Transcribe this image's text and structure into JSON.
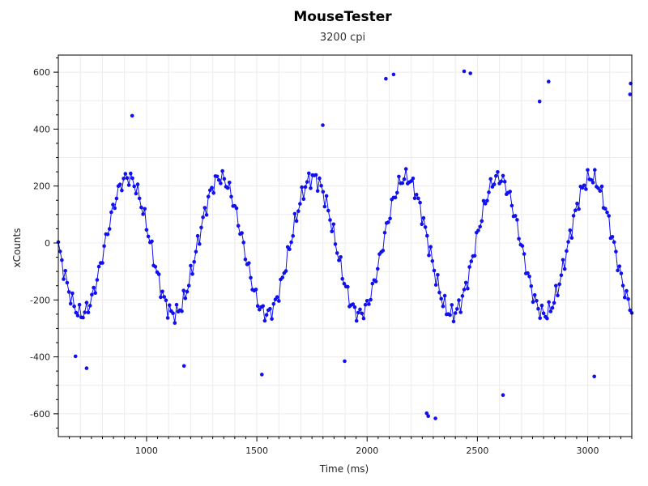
{
  "chart_data": {
    "type": "scatter",
    "title": "MouseTester",
    "subtitle": "3200 cpi",
    "xlabel": "Time (ms)",
    "ylabel": "xCounts",
    "xlim": [
      600,
      3200
    ],
    "ylim": [
      -680,
      660
    ],
    "xticks": [
      1000,
      1500,
      2000,
      2500,
      3000
    ],
    "yticks": [
      -600,
      -400,
      -200,
      0,
      200,
      400,
      600
    ],
    "grid": true,
    "colors": {
      "series": "#1010ee",
      "grid": "#ececec",
      "axis": "#000000"
    },
    "series": [
      {
        "mode": "markers+line",
        "model": {
          "center": -10,
          "amplitude": 240,
          "period": 420,
          "peak_time": 915
        },
        "x": [
          600,
          608,
          616,
          624,
          632,
          640,
          648,
          656,
          664,
          672,
          680,
          688,
          696,
          704,
          712,
          720,
          728,
          736,
          744,
          752,
          760,
          768,
          776,
          784,
          792,
          800,
          808,
          816,
          824,
          832,
          840,
          848,
          856,
          864,
          872,
          880,
          888,
          896,
          904,
          912,
          920,
          928,
          936,
          944,
          952,
          960,
          968,
          976,
          984,
          992,
          1000,
          1008,
          1016,
          1024,
          1032,
          1040,
          1048,
          1056,
          1064,
          1072,
          1080,
          1088,
          1096,
          1104,
          1112,
          1120,
          1128,
          1136,
          1144,
          1152,
          1160,
          1168,
          1176,
          1184,
          1192,
          1200,
          1208,
          1216,
          1224,
          1232,
          1240,
          1248,
          1256,
          1264,
          1272,
          1280,
          1288,
          1296,
          1304,
          1312,
          1320,
          1328,
          1336,
          1344,
          1352,
          1360,
          1368,
          1376,
          1384,
          1392,
          1400,
          1408,
          1416,
          1424,
          1432,
          1440,
          1448,
          1456,
          1464,
          1472,
          1480,
          1488,
          1496,
          1504,
          1512,
          1520,
          1528,
          1536,
          1544,
          1552,
          1560,
          1568,
          1576,
          1584,
          1592,
          1600,
          1608,
          1616,
          1624,
          1632,
          1640,
          1648,
          1656,
          1664,
          1672,
          1680,
          1688,
          1696,
          1704,
          1712,
          1720,
          1728,
          1736,
          1744,
          1752,
          1760,
          1768,
          1776,
          1784,
          1792,
          1800,
          1808,
          1816,
          1824,
          1832,
          1840,
          1848,
          1856,
          1864,
          1872,
          1880,
          1888,
          1896,
          1904,
          1912,
          1920,
          1928,
          1936,
          1944,
          1952,
          1960,
          1968,
          1976,
          1984,
          1992,
          2000,
          2008,
          2016,
          2024,
          2032,
          2040,
          2048,
          2056,
          2064,
          2072,
          2080,
          2088,
          2096,
          2104,
          2112,
          2120,
          2128,
          2136,
          2144,
          2152,
          2160,
          2168,
          2176,
          2184,
          2192,
          2200,
          2208,
          2216,
          2224,
          2232,
          2240,
          2248,
          2256,
          2264,
          2272,
          2280,
          2288,
          2296,
          2304,
          2312,
          2320,
          2328,
          2336,
          2344,
          2352,
          2360,
          2368,
          2376,
          2384,
          2392,
          2400,
          2408,
          2416,
          2424,
          2432,
          2440,
          2448,
          2456,
          2464,
          2472,
          2480,
          2488,
          2496,
          2504,
          2512,
          2520,
          2528,
          2536,
          2544,
          2552,
          2560,
          2568,
          2576,
          2584,
          2592,
          2600,
          2608,
          2616,
          2624,
          2632,
          2640,
          2648,
          2656,
          2664,
          2672,
          2680,
          2688,
          2696,
          2704,
          2712,
          2720,
          2728,
          2736,
          2744,
          2752,
          2760,
          2768,
          2776,
          2784,
          2792,
          2800,
          2808,
          2816,
          2824,
          2832,
          2840,
          2848,
          2856,
          2864,
          2872,
          2880,
          2888,
          2896,
          2904,
          2912,
          2920,
          2928,
          2936,
          2944,
          2952,
          2960,
          2968,
          2976,
          2984,
          2992,
          3000,
          3008,
          3016,
          3024,
          3032,
          3040,
          3048,
          3056,
          3064,
          3072,
          3080,
          3088,
          3096,
          3104,
          3112,
          3120,
          3128,
          3136,
          3144,
          3152,
          3160,
          3168,
          3176,
          3184,
          3192,
          3200
        ]
      },
      {
        "mode": "outliers",
        "points": [
          [
            935,
            447
          ],
          [
            1799,
            414
          ],
          [
            2085,
            577
          ],
          [
            2120,
            592
          ],
          [
            2440,
            603
          ],
          [
            2468,
            596
          ],
          [
            2782,
            497
          ],
          [
            2823,
            567
          ],
          [
            3195,
            560
          ],
          [
            3192,
            522
          ],
          [
            678,
            -398
          ],
          [
            728,
            -440
          ],
          [
            1170,
            -432
          ],
          [
            1523,
            -462
          ],
          [
            1898,
            -415
          ],
          [
            2270,
            -598
          ],
          [
            2277,
            -608
          ],
          [
            2310,
            -616
          ],
          [
            2616,
            -534
          ],
          [
            3030,
            -469
          ]
        ]
      }
    ]
  }
}
